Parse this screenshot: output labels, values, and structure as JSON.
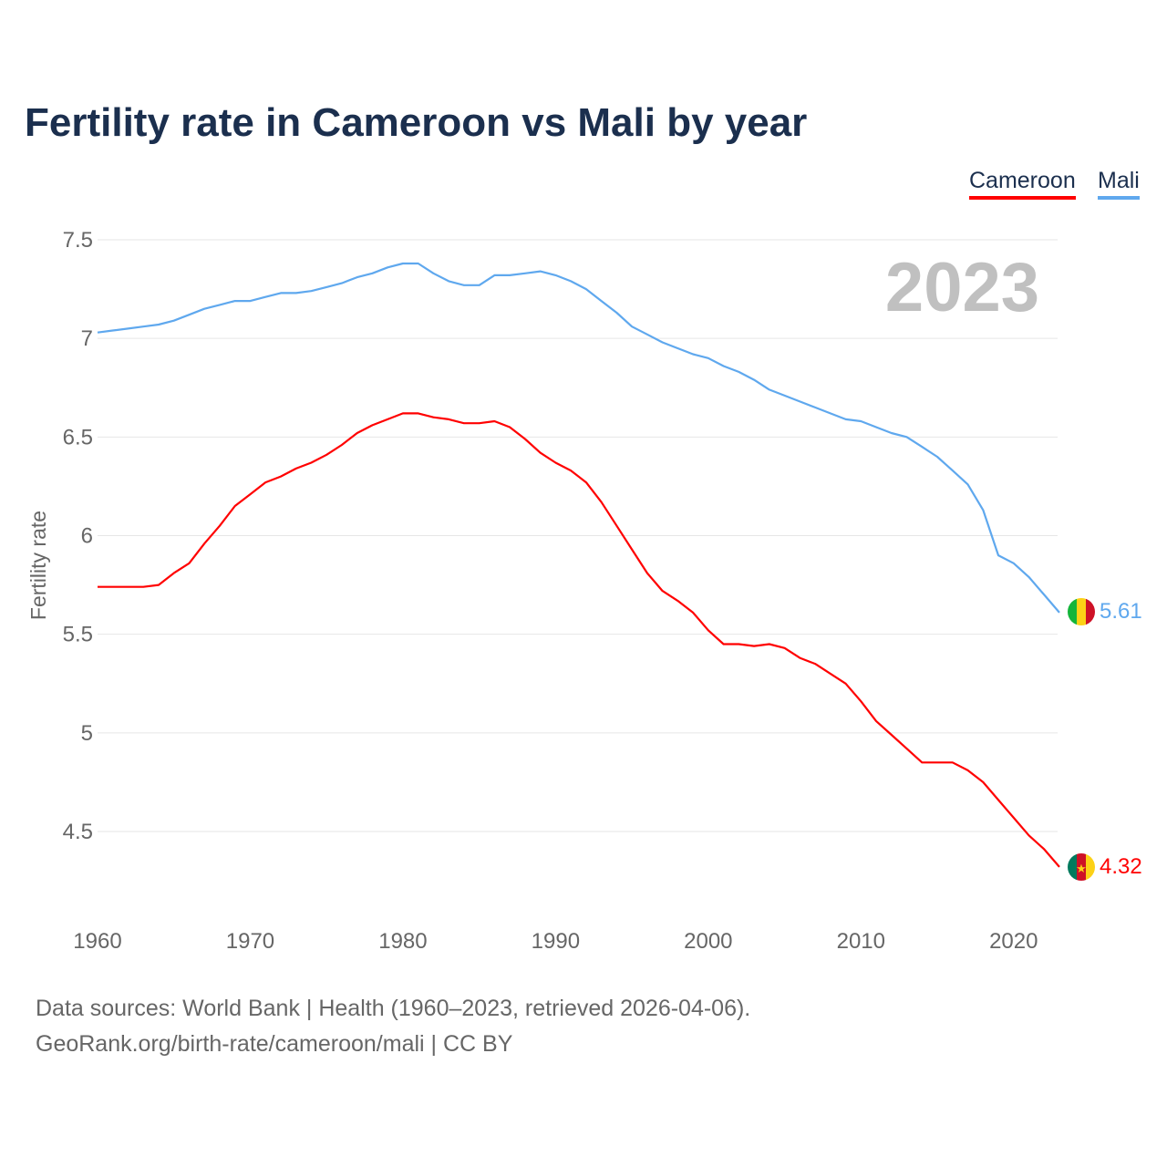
{
  "title": "Fertility rate in Cameroon vs Mali by year",
  "legend": {
    "cameroon": "Cameroon",
    "mali": "Mali"
  },
  "year_label": "2023",
  "footer": {
    "line1": "Data sources: World Bank | Health (1960–2023, retrieved 2026-04-06).",
    "line2": "GeoRank.org/birth-rate/cameroon/mali | CC BY"
  },
  "chart_data": {
    "type": "line",
    "title": "Fertility rate in Cameroon vs Mali by year",
    "xlabel": "",
    "ylabel": "Fertility rate",
    "xlim": [
      1960,
      2023
    ],
    "ylim": [
      4.2,
      7.6
    ],
    "yticks": [
      4.5,
      5,
      5.5,
      6,
      6.5,
      7,
      7.5
    ],
    "ytick_labels": [
      "4.5",
      "5",
      "5.5",
      "6",
      "6.5",
      "7",
      "7.5"
    ],
    "xticks": [
      1960,
      1970,
      1980,
      1990,
      2000,
      2010,
      2020
    ],
    "xtick_labels": [
      "1960",
      "1970",
      "1980",
      "1990",
      "2000",
      "2010",
      "2020"
    ],
    "grid": true,
    "legend_position": "top-right",
    "x_start": 1960,
    "series": [
      {
        "name": "Cameroon",
        "color": "#ff0000",
        "end_label": "4.32",
        "values": [
          5.74,
          5.74,
          5.74,
          5.74,
          5.75,
          5.81,
          5.86,
          5.96,
          6.05,
          6.15,
          6.21,
          6.27,
          6.3,
          6.34,
          6.37,
          6.41,
          6.46,
          6.52,
          6.56,
          6.59,
          6.62,
          6.62,
          6.6,
          6.59,
          6.57,
          6.57,
          6.58,
          6.55,
          6.49,
          6.42,
          6.37,
          6.33,
          6.27,
          6.17,
          6.05,
          5.93,
          5.81,
          5.72,
          5.67,
          5.61,
          5.52,
          5.45,
          5.45,
          5.44,
          5.45,
          5.43,
          5.38,
          5.35,
          5.3,
          5.25,
          5.16,
          5.06,
          4.99,
          4.92,
          4.85,
          4.85,
          4.85,
          4.81,
          4.75,
          4.66,
          4.57,
          4.48,
          4.41,
          4.32
        ]
      },
      {
        "name": "Mali",
        "color": "#5fa8ee",
        "end_label": "5.61",
        "values": [
          7.03,
          7.04,
          7.05,
          7.06,
          7.07,
          7.09,
          7.12,
          7.15,
          7.17,
          7.19,
          7.19,
          7.21,
          7.23,
          7.23,
          7.24,
          7.26,
          7.28,
          7.31,
          7.33,
          7.36,
          7.38,
          7.38,
          7.33,
          7.29,
          7.27,
          7.27,
          7.32,
          7.32,
          7.33,
          7.34,
          7.32,
          7.29,
          7.25,
          7.19,
          7.13,
          7.06,
          7.02,
          6.98,
          6.95,
          6.92,
          6.9,
          6.86,
          6.83,
          6.79,
          6.74,
          6.71,
          6.68,
          6.65,
          6.62,
          6.59,
          6.58,
          6.55,
          6.52,
          6.5,
          6.45,
          6.4,
          6.33,
          6.26,
          6.13,
          5.9,
          5.86,
          5.79,
          5.7,
          5.61
        ]
      }
    ]
  }
}
